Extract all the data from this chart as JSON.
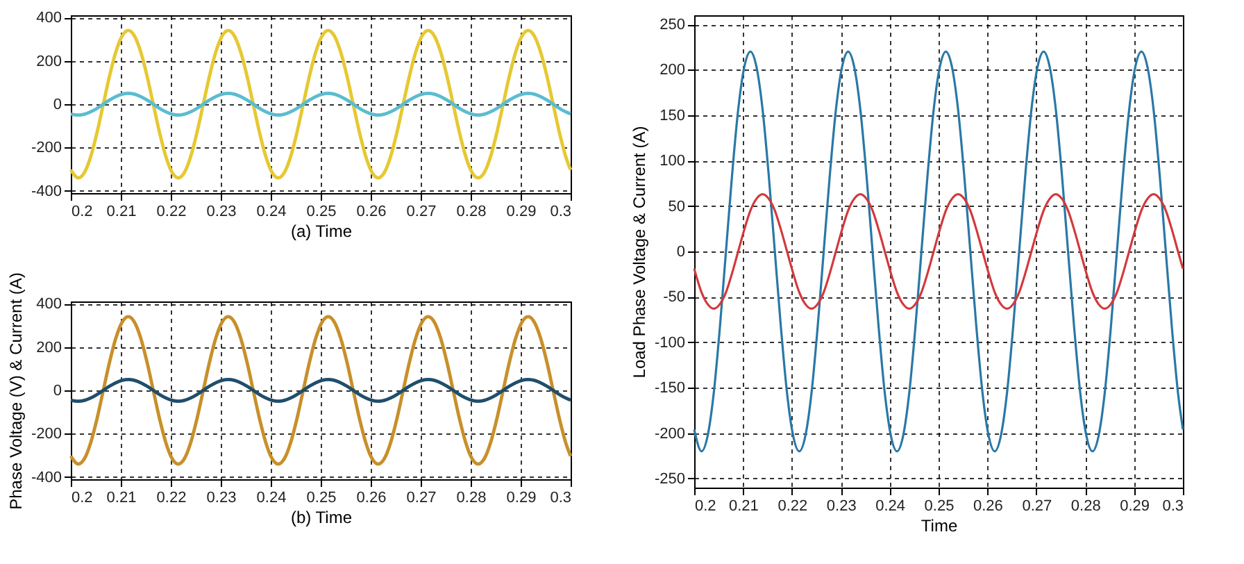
{
  "chart_data": [
    {
      "type": "line",
      "xlabel": "(a)  Time",
      "xlim": [
        0.2,
        0.3
      ],
      "xticks": [
        0.2,
        0.21,
        0.22,
        0.23,
        0.24,
        0.25,
        0.26,
        0.27,
        0.28,
        0.29,
        0.3
      ],
      "ylim": [
        -410,
        410
      ],
      "yticks": [
        -400,
        -200,
        0,
        200,
        400
      ],
      "grid": true,
      "line_style": "solid",
      "x": [
        0.2,
        0.2015,
        0.20275,
        0.204,
        0.20525,
        0.2065,
        0.20775,
        0.209,
        0.21025,
        0.2115,
        0.21275,
        0.214,
        0.21525,
        0.2165,
        0.21775,
        0.219,
        0.22025,
        0.2215,
        0.22275,
        0.224,
        0.22525,
        0.2265,
        0.22775,
        0.229,
        0.23025,
        0.2315,
        0.23275,
        0.234,
        0.23525,
        0.2365,
        0.23775,
        0.239,
        0.24025,
        0.2415,
        0.24275,
        0.244,
        0.24525,
        0.2465,
        0.24775,
        0.249,
        0.25025,
        0.2515,
        0.25275,
        0.254,
        0.25525,
        0.2565,
        0.25775,
        0.259,
        0.26025,
        0.2615,
        0.26275,
        0.264,
        0.26525,
        0.2665,
        0.26775,
        0.269,
        0.27025,
        0.2715,
        0.27275,
        0.274,
        0.27525,
        0.2765,
        0.27775,
        0.279,
        0.28025,
        0.2815,
        0.28275,
        0.284,
        0.28525,
        0.2865,
        0.28775,
        0.289,
        0.29025,
        0.2915,
        0.29275,
        0.294,
        0.29525,
        0.2965,
        0.29775,
        0.299,
        0.3
      ],
      "series": [
        {
          "color": "#e6c832",
          "values": [
            -303,
            -340,
            -314,
            -240,
            -130,
            0,
            130,
            240,
            314,
            340,
            314,
            240,
            130,
            0,
            -130,
            -240,
            -314,
            -340,
            -314,
            -240,
            -130,
            0,
            130,
            240,
            314,
            340,
            314,
            240,
            130,
            0,
            -130,
            -240,
            -314,
            -340,
            -314,
            -240,
            -130,
            0,
            130,
            240,
            314,
            340,
            314,
            240,
            130,
            0,
            -130,
            -240,
            -314,
            -340,
            -314,
            -240,
            -130,
            0,
            130,
            240,
            314,
            340,
            314,
            240,
            130,
            0,
            -130,
            -240,
            -314,
            -340,
            -314,
            -240,
            -130,
            0,
            130,
            240,
            314,
            340,
            314,
            240,
            130,
            0,
            -130,
            -240,
            -303
          ]
        },
        {
          "color": "#5bbcd0",
          "values": [
            -45,
            -50,
            -46,
            -35,
            -19,
            0,
            19,
            35,
            46,
            50,
            46,
            35,
            19,
            0,
            -19,
            -35,
            -46,
            -50,
            -46,
            -35,
            -19,
            0,
            19,
            35,
            46,
            50,
            46,
            35,
            19,
            0,
            -19,
            -35,
            -46,
            -50,
            -46,
            -35,
            -19,
            0,
            19,
            35,
            46,
            50,
            46,
            35,
            19,
            0,
            -19,
            -35,
            -46,
            -50,
            -46,
            -35,
            -19,
            0,
            19,
            35,
            46,
            50,
            46,
            35,
            19,
            0,
            -19,
            -35,
            -46,
            -50,
            -46,
            -35,
            -19,
            0,
            19,
            35,
            46,
            50,
            46,
            35,
            19,
            0,
            -19,
            -35,
            -45
          ]
        }
      ]
    },
    {
      "type": "line",
      "xlabel": "(b) Time",
      "ylabel": "Phase Voltage (V) & Current (A)",
      "xlim": [
        0.2,
        0.3
      ],
      "xticks": [
        0.2,
        0.21,
        0.22,
        0.23,
        0.24,
        0.25,
        0.26,
        0.27,
        0.28,
        0.29,
        0.3
      ],
      "ylim": [
        -410,
        410
      ],
      "yticks": [
        -400,
        -200,
        0,
        200,
        400
      ],
      "grid": true,
      "line_style": "solid",
      "x": [
        0.2,
        0.2015,
        0.20275,
        0.204,
        0.20525,
        0.2065,
        0.20775,
        0.209,
        0.21025,
        0.2115,
        0.21275,
        0.214,
        0.21525,
        0.2165,
        0.21775,
        0.219,
        0.22025,
        0.2215,
        0.22275,
        0.224,
        0.22525,
        0.2265,
        0.22775,
        0.229,
        0.23025,
        0.2315,
        0.23275,
        0.234,
        0.23525,
        0.2365,
        0.23775,
        0.239,
        0.24025,
        0.2415,
        0.24275,
        0.244,
        0.24525,
        0.2465,
        0.24775,
        0.249,
        0.25025,
        0.2515,
        0.25275,
        0.254,
        0.25525,
        0.2565,
        0.25775,
        0.259,
        0.26025,
        0.2615,
        0.26275,
        0.264,
        0.26525,
        0.2665,
        0.26775,
        0.269,
        0.27025,
        0.2715,
        0.27275,
        0.274,
        0.27525,
        0.2765,
        0.27775,
        0.279,
        0.28025,
        0.2815,
        0.28275,
        0.284,
        0.28525,
        0.2865,
        0.28775,
        0.289,
        0.29025,
        0.2915,
        0.29275,
        0.294,
        0.29525,
        0.2965,
        0.29775,
        0.299,
        0.3
      ],
      "series": [
        {
          "color": "#c8902a",
          "values": [
            -303,
            -340,
            -314,
            -240,
            -130,
            0,
            130,
            240,
            314,
            340,
            314,
            240,
            130,
            0,
            -130,
            -240,
            -314,
            -340,
            -314,
            -240,
            -130,
            0,
            130,
            240,
            314,
            340,
            314,
            240,
            130,
            0,
            -130,
            -240,
            -314,
            -340,
            -314,
            -240,
            -130,
            0,
            130,
            240,
            314,
            340,
            314,
            240,
            130,
            0,
            -130,
            -240,
            -314,
            -340,
            -314,
            -240,
            -130,
            0,
            130,
            240,
            314,
            340,
            314,
            240,
            130,
            0,
            -130,
            -240,
            -314,
            -340,
            -314,
            -240,
            -130,
            0,
            130,
            240,
            314,
            340,
            314,
            240,
            130,
            0,
            -130,
            -240,
            -303
          ]
        },
        {
          "color": "#1f4e6b",
          "values": [
            -45,
            -50,
            -46,
            -35,
            -19,
            0,
            19,
            35,
            46,
            50,
            46,
            35,
            19,
            0,
            -19,
            -35,
            -46,
            -50,
            -46,
            -35,
            -19,
            0,
            19,
            35,
            46,
            50,
            46,
            35,
            19,
            0,
            -19,
            -35,
            -46,
            -50,
            -46,
            -35,
            -19,
            0,
            19,
            35,
            46,
            50,
            46,
            35,
            19,
            0,
            -19,
            -35,
            -46,
            -50,
            -46,
            -35,
            -19,
            0,
            19,
            35,
            46,
            50,
            46,
            35,
            19,
            0,
            -19,
            -35,
            -46,
            -50,
            -46,
            -35,
            -19,
            0,
            19,
            35,
            46,
            50,
            46,
            35,
            19,
            0,
            -19,
            -35,
            -45
          ]
        }
      ]
    },
    {
      "type": "line",
      "xlabel": "Time",
      "ylabel": "Load Phase Voltage & Current (A)",
      "xlim": [
        0.2,
        0.3
      ],
      "xticks": [
        0.2,
        0.21,
        0.22,
        0.23,
        0.24,
        0.25,
        0.26,
        0.27,
        0.28,
        0.29,
        0.3
      ],
      "ylim": [
        -260,
        260
      ],
      "yticks": [
        -250,
        -200,
        -150,
        -100,
        -50,
        0,
        50,
        100,
        150,
        200,
        250
      ],
      "grid": true,
      "line_style": "solid",
      "x": [
        0.2,
        0.2015,
        0.20275,
        0.204,
        0.20525,
        0.2065,
        0.20775,
        0.209,
        0.21025,
        0.2115,
        0.21275,
        0.214,
        0.21525,
        0.2165,
        0.21775,
        0.219,
        0.22025,
        0.2215,
        0.22275,
        0.224,
        0.22525,
        0.2265,
        0.22775,
        0.229,
        0.23025,
        0.2315,
        0.23275,
        0.234,
        0.23525,
        0.2365,
        0.23775,
        0.239,
        0.24025,
        0.2415,
        0.24275,
        0.244,
        0.24525,
        0.2465,
        0.24775,
        0.249,
        0.25025,
        0.2515,
        0.25275,
        0.254,
        0.25525,
        0.2565,
        0.25775,
        0.259,
        0.26025,
        0.2615,
        0.26275,
        0.264,
        0.26525,
        0.2665,
        0.26775,
        0.269,
        0.27025,
        0.2715,
        0.27275,
        0.274,
        0.27525,
        0.2765,
        0.27775,
        0.279,
        0.28025,
        0.2815,
        0.28275,
        0.284,
        0.28525,
        0.2865,
        0.28775,
        0.289,
        0.29025,
        0.2915,
        0.29275,
        0.294,
        0.29525,
        0.2965,
        0.29775,
        0.299,
        0.3
      ],
      "series": [
        {
          "color": "#2a78a6",
          "values": [
            -196,
            -220,
            -203,
            -156,
            -84,
            0,
            84,
            156,
            203,
            220,
            203,
            156,
            84,
            0,
            -84,
            -156,
            -203,
            -220,
            -203,
            -156,
            -84,
            0,
            84,
            156,
            203,
            220,
            203,
            156,
            84,
            0,
            -84,
            -156,
            -203,
            -220,
            -203,
            -156,
            -84,
            0,
            84,
            156,
            203,
            220,
            203,
            156,
            84,
            0,
            -84,
            -156,
            -203,
            -220,
            -203,
            -156,
            -84,
            0,
            84,
            156,
            203,
            220,
            203,
            156,
            84,
            0,
            -84,
            -156,
            -203,
            -220,
            -203,
            -156,
            -84,
            0,
            84,
            156,
            203,
            220,
            203,
            156,
            84,
            0,
            -84,
            -156,
            -196
          ]
        },
        {
          "color": "#d2393c",
          "values": [
            -19,
            -45,
            -58,
            -63,
            -58,
            -45,
            -24,
            0,
            24,
            45,
            58,
            63,
            58,
            45,
            24,
            0,
            -24,
            -45,
            -58,
            -63,
            -58,
            -45,
            -24,
            0,
            24,
            45,
            58,
            63,
            58,
            45,
            24,
            0,
            -24,
            -45,
            -58,
            -63,
            -58,
            -45,
            -24,
            0,
            24,
            45,
            58,
            63,
            58,
            45,
            24,
            0,
            -24,
            -45,
            -58,
            -63,
            -58,
            -45,
            -24,
            0,
            24,
            45,
            58,
            63,
            58,
            45,
            24,
            0,
            -24,
            -45,
            -58,
            -63,
            -58,
            -45,
            -24,
            0,
            24,
            45,
            58,
            63,
            58,
            45,
            24,
            0,
            -19
          ]
        }
      ]
    }
  ]
}
